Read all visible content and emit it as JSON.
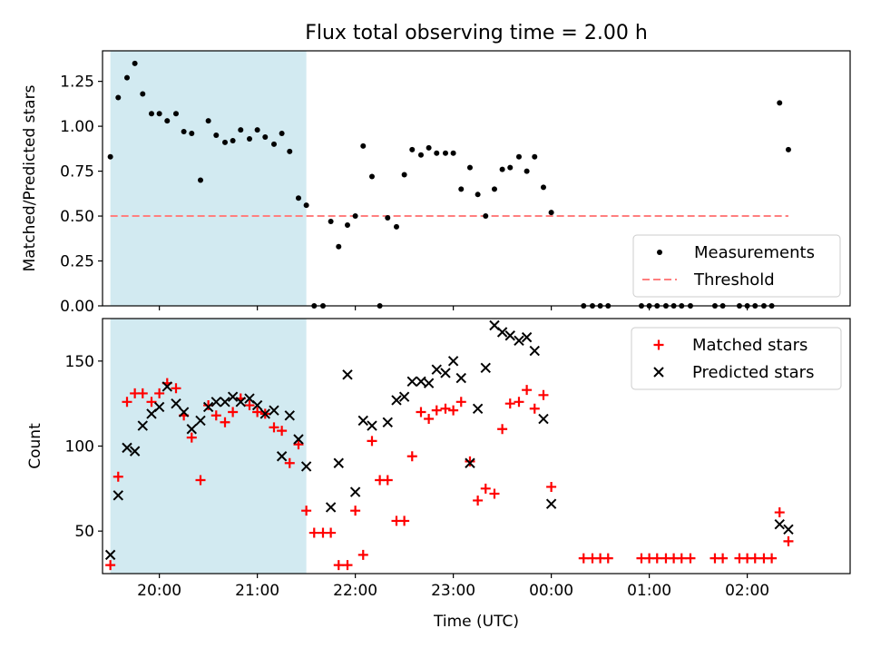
{
  "chart_data": [
    {
      "type": "scatter",
      "panel": "top",
      "title": "Flux total observing time = 2.00 h",
      "xlabel": "",
      "ylabel": "Matched/Predicted stars",
      "ylim": [
        0,
        1.42
      ],
      "yticks": [
        0.0,
        0.25,
        0.5,
        0.75,
        1.0,
        1.25
      ],
      "ytick_labels": [
        "0.00",
        "0.25",
        "0.50",
        "0.75",
        "1.00",
        "1.25"
      ],
      "x_unit": "hours since 19:00 UTC",
      "xlim": [
        0.42,
        8.05
      ],
      "xticks": [
        1,
        2,
        3,
        4,
        5,
        6,
        7
      ],
      "shaded_span": [
        0.5,
        2.5
      ],
      "shade_color": "#add8e6",
      "threshold": {
        "name": "Threshold",
        "value": 0.5,
        "x": [
          0.5,
          7.42
        ],
        "color": "#ff7f7f"
      },
      "legend": {
        "position": "lower right",
        "entries": [
          "Measurements",
          "Threshold"
        ]
      },
      "series": [
        {
          "name": "Measurements",
          "color": "#000000",
          "x": [
            0.5,
            0.58,
            0.67,
            0.75,
            0.83,
            0.92,
            1.0,
            1.08,
            1.17,
            1.25,
            1.33,
            1.42,
            1.5,
            1.58,
            1.67,
            1.75,
            1.83,
            1.92,
            2.0,
            2.08,
            2.17,
            2.25,
            2.33,
            2.42,
            2.5,
            2.58,
            2.67,
            2.75,
            2.83,
            2.92,
            3.0,
            3.08,
            3.17,
            3.25,
            3.33,
            3.42,
            3.5,
            3.58,
            3.67,
            3.75,
            3.83,
            3.92,
            4.0,
            4.08,
            4.17,
            4.25,
            4.33,
            4.42,
            4.5,
            4.58,
            4.67,
            4.75,
            4.83,
            4.92,
            5.0,
            5.33,
            5.42,
            5.5,
            5.58,
            5.92,
            6.0,
            6.08,
            6.17,
            6.25,
            6.33,
            6.42,
            6.67,
            6.75,
            6.92,
            7.0,
            7.08,
            7.17,
            7.25,
            7.33,
            7.42
          ],
          "y": [
            0.83,
            1.16,
            1.27,
            1.35,
            1.18,
            1.07,
            1.07,
            1.03,
            1.07,
            0.97,
            0.96,
            0.7,
            1.03,
            0.95,
            0.91,
            0.92,
            0.98,
            0.93,
            0.98,
            0.94,
            0.9,
            0.96,
            0.86,
            0.6,
            0.56,
            0.0,
            0.0,
            0.47,
            0.33,
            0.45,
            0.5,
            0.89,
            0.72,
            0.0,
            0.49,
            0.44,
            0.73,
            0.87,
            0.84,
            0.88,
            0.85,
            0.85,
            0.85,
            0.65,
            0.77,
            0.62,
            0.5,
            0.65,
            0.76,
            0.77,
            0.83,
            0.75,
            0.83,
            0.66,
            0.52,
            0.0,
            0.0,
            0.0,
            0.0,
            0.0,
            0.0,
            0.0,
            0.0,
            0.0,
            0.0,
            0.0,
            0.0,
            0.0,
            0.0,
            0.0,
            0.0,
            0.0,
            0.0,
            1.13,
            0.87
          ]
        }
      ]
    },
    {
      "type": "scatter",
      "panel": "bottom",
      "title": "",
      "xlabel": "Time (UTC)",
      "ylabel": "Count",
      "ylim": [
        25,
        175
      ],
      "yticks": [
        50,
        100,
        150
      ],
      "ytick_labels": [
        "50",
        "100",
        "150"
      ],
      "x_unit": "hours since 19:00 UTC",
      "xlim": [
        0.42,
        8.05
      ],
      "xticks": [
        1,
        2,
        3,
        4,
        5,
        6,
        7
      ],
      "xtick_labels": [
        "20:00",
        "21:00",
        "22:00",
        "23:00",
        "00:00",
        "01:00",
        "02:00"
      ],
      "shaded_span": [
        0.5,
        2.5
      ],
      "shade_color": "#add8e6",
      "legend": {
        "position": "upper right",
        "entries": [
          "Matched stars",
          "Predicted stars"
        ]
      },
      "series": [
        {
          "name": "Matched stars",
          "color": "#ff0000",
          "marker": "+",
          "x": [
            0.5,
            0.58,
            0.67,
            0.75,
            0.83,
            0.92,
            1.0,
            1.08,
            1.17,
            1.25,
            1.33,
            1.42,
            1.5,
            1.58,
            1.67,
            1.75,
            1.83,
            1.92,
            2.0,
            2.08,
            2.17,
            2.25,
            2.33,
            2.42,
            2.5,
            2.58,
            2.67,
            2.75,
            2.83,
            2.92,
            3.0,
            3.08,
            3.17,
            3.25,
            3.33,
            3.42,
            3.5,
            3.58,
            3.67,
            3.75,
            3.83,
            3.92,
            4.0,
            4.08,
            4.17,
            4.25,
            4.33,
            4.42,
            4.5,
            4.58,
            4.67,
            4.75,
            4.83,
            4.92,
            5.0,
            5.33,
            5.42,
            5.5,
            5.58,
            5.92,
            6.0,
            6.08,
            6.17,
            6.25,
            6.33,
            6.42,
            6.67,
            6.75,
            6.92,
            7.0,
            7.08,
            7.17,
            7.25,
            7.33,
            7.42
          ],
          "y": [
            30,
            82,
            126,
            131,
            131,
            126,
            131,
            137,
            134,
            118,
            105,
            80,
            124,
            118,
            114,
            120,
            128,
            124,
            120,
            119,
            111,
            109,
            90,
            101,
            62,
            49,
            49,
            49,
            30,
            30,
            62,
            36,
            103,
            80,
            80,
            56,
            56,
            94,
            120,
            116,
            121,
            122,
            121,
            126,
            91,
            68,
            75,
            72,
            110,
            125,
            126,
            133,
            122,
            130,
            76,
            34,
            34,
            34,
            34,
            34,
            34,
            34,
            34,
            34,
            34,
            34,
            34,
            34,
            34,
            34,
            34,
            34,
            34,
            61,
            44
          ]
        },
        {
          "name": "Predicted stars",
          "color": "#000000",
          "marker": "x",
          "x": [
            0.5,
            0.58,
            0.67,
            0.75,
            0.83,
            0.92,
            1.0,
            1.08,
            1.17,
            1.25,
            1.33,
            1.42,
            1.5,
            1.58,
            1.67,
            1.75,
            1.83,
            1.92,
            2.0,
            2.08,
            2.17,
            2.25,
            2.33,
            2.42,
            2.5,
            2.75,
            2.83,
            2.92,
            3.0,
            3.08,
            3.17,
            3.33,
            3.42,
            3.5,
            3.58,
            3.67,
            3.75,
            3.83,
            3.92,
            4.0,
            4.08,
            4.17,
            4.25,
            4.33,
            4.42,
            4.5,
            4.58,
            4.67,
            4.75,
            4.83,
            4.92,
            5.0,
            7.33,
            7.42
          ],
          "y": [
            36,
            71,
            99,
            97,
            112,
            119,
            123,
            135,
            125,
            120,
            110,
            115,
            123,
            126,
            126,
            129,
            126,
            128,
            124,
            119,
            121,
            94,
            118,
            104,
            88,
            64,
            90,
            142,
            73,
            115,
            112,
            114,
            127,
            129,
            138,
            138,
            137,
            145,
            143,
            150,
            140,
            90,
            122,
            146,
            171,
            167,
            165,
            162,
            164,
            156,
            116,
            66,
            54,
            51
          ]
        }
      ]
    }
  ]
}
